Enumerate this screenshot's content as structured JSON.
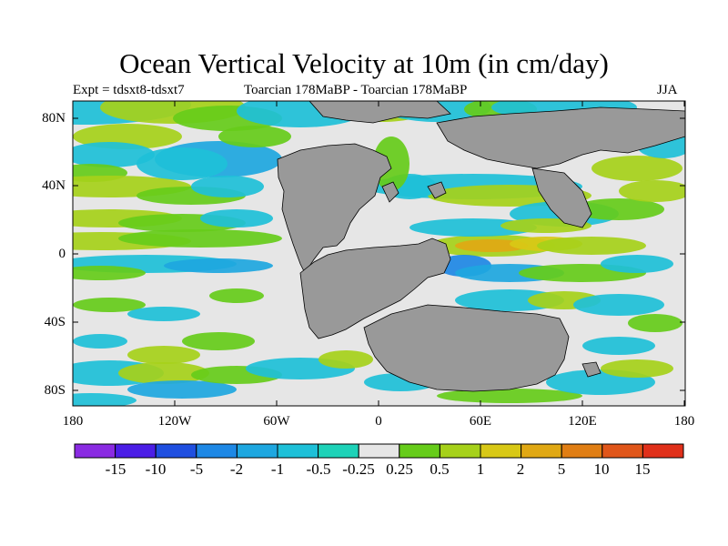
{
  "title": "Ocean Vertical Velocity at 10m (in cm/day)",
  "subtitle_left": "Expt = tdsxt8-tdsxt7",
  "subtitle_center": "Toarcian 178MaBP - Toarcian 178MaBP",
  "subtitle_right": "JJA",
  "lat_labels": [
    "80N",
    "40N",
    "0",
    "40S",
    "80S"
  ],
  "lon_labels": [
    "180",
    "120W",
    "60W",
    "0",
    "60E",
    "120E",
    "180"
  ],
  "colorbar": {
    "labels": [
      "-15",
      "-10",
      "-5",
      "-2",
      "-1",
      "-0.5",
      "-0.25",
      "0.25",
      "0.5",
      "1",
      "2",
      "5",
      "10",
      "15"
    ],
    "colors": [
      "#8a2be2",
      "#4b1ee6",
      "#1f4fe0",
      "#1e88e5",
      "#1ea7e0",
      "#1ec0d8",
      "#1ed2b8",
      "#e6e6e6",
      "#66cc1a",
      "#a6d11a",
      "#d8c816",
      "#e0a814",
      "#e07e14",
      "#e0561a",
      "#e0301a"
    ]
  },
  "land_color": "#999999"
}
